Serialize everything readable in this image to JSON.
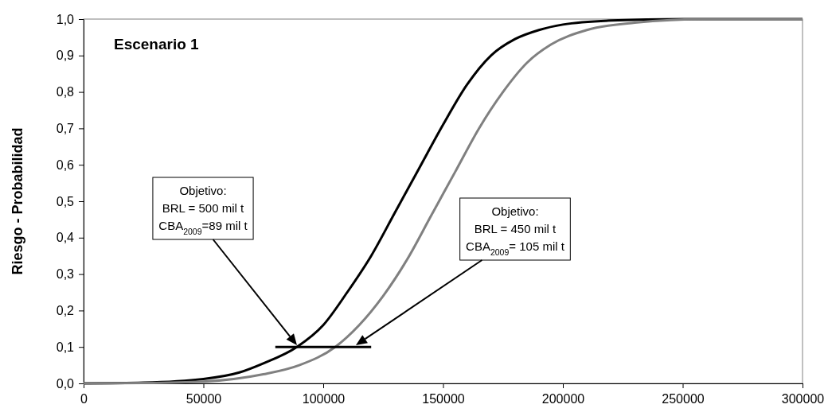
{
  "chart_data": {
    "type": "line",
    "title": "Escenario 1",
    "ylabel": "Riesgo - Probabilidad",
    "xlim": [
      0,
      300000
    ],
    "xticks": [
      0,
      50000,
      100000,
      150000,
      200000,
      250000,
      300000
    ],
    "ylim": [
      0,
      1
    ],
    "yticks": [
      {
        "value": 0,
        "label": "0,0"
      },
      {
        "value": 0.1,
        "label": "0,1"
      },
      {
        "value": 0.2,
        "label": "0,2"
      },
      {
        "value": 0.3,
        "label": "0,3"
      },
      {
        "value": 0.4,
        "label": "0,4"
      },
      {
        "value": 0.5,
        "label": "0,5"
      },
      {
        "value": 0.6,
        "label": "0,6"
      },
      {
        "value": 0.7,
        "label": "0,7"
      },
      {
        "value": 0.8,
        "label": "0,8"
      },
      {
        "value": 0.9,
        "label": "0,9"
      },
      {
        "value": 1,
        "label": "1,0"
      }
    ],
    "grid": false,
    "marker": "none",
    "line_style": "solid",
    "series": [
      {
        "color": "#000000",
        "x": [
          0,
          25000,
          50000,
          65000,
          75000,
          89000,
          100000,
          110000,
          120000,
          130000,
          140000,
          150000,
          160000,
          170000,
          180000,
          190000,
          200000,
          220000,
          250000,
          300000
        ],
        "values": [
          0,
          0.002,
          0.012,
          0.03,
          0.055,
          0.1,
          0.16,
          0.25,
          0.35,
          0.47,
          0.59,
          0.71,
          0.82,
          0.9,
          0.945,
          0.97,
          0.985,
          0.996,
          1,
          1
        ]
      },
      {
        "color": "#808080",
        "x": [
          0,
          25000,
          50000,
          75000,
          90000,
          105000,
          115000,
          125000,
          135000,
          145000,
          155000,
          165000,
          175000,
          185000,
          195000,
          210000,
          230000,
          260000,
          300000
        ],
        "values": [
          0,
          0.001,
          0.005,
          0.025,
          0.05,
          0.1,
          0.16,
          0.24,
          0.34,
          0.46,
          0.58,
          0.7,
          0.8,
          0.88,
          0.93,
          0.97,
          0.99,
          1,
          1
        ]
      },
      {
        "color": "#000000",
        "x": [
          80000,
          120000
        ],
        "values": [
          0.1,
          0.1
        ]
      }
    ],
    "annotations": [
      "Objetivo:\nBRL = 500 mil t\nCBA$_{2009}$=89 mil t",
      "Objetivo:\nBRL = 450 mil t\nCBA$_{2009}$= 105 mil t"
    ]
  }
}
